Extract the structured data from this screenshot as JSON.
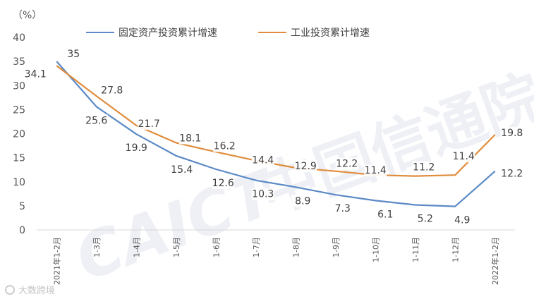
{
  "chart_data": {
    "type": "line",
    "ylabel": "（%）",
    "ylim": [
      0,
      40
    ],
    "yticks": [
      "0",
      "5",
      "10",
      "15",
      "20",
      "25",
      "30",
      "35",
      "40"
    ],
    "categories": [
      "2021年1-2月",
      "1-3月",
      "1-4月",
      "1-5月",
      "1-6月",
      "1-7月",
      "1-8月",
      "1-9月",
      "1-10月",
      "1-11月",
      "1-12月",
      "2022年1-2月"
    ],
    "series": [
      {
        "name": "固定资产投资累计增速",
        "color": "#5b8ac6",
        "values": [
          35,
          25.6,
          19.9,
          15.4,
          12.6,
          10.3,
          8.9,
          7.3,
          6.1,
          5.2,
          4.9,
          12.2
        ],
        "labels": [
          "35",
          "25.6",
          "19.9",
          "15.4",
          "12.6",
          "10.3",
          "8.9",
          "7.3",
          "6.1",
          "5.2",
          "4.9",
          "12.2"
        ]
      },
      {
        "name": "工业投资累计增速",
        "color": "#e08c3c",
        "values": [
          34.1,
          27.8,
          21.7,
          18.1,
          16.2,
          14.4,
          12.9,
          12.2,
          11.4,
          11.2,
          11.4,
          19.8
        ],
        "labels": [
          "34.1",
          "27.8",
          "21.7",
          "18.1",
          "16.2",
          "14.4",
          "12.9",
          "12.2",
          "11.4",
          "11.2",
          "11.4",
          "19.8"
        ]
      }
    ],
    "grid": false,
    "legend_position": "top"
  },
  "watermark": "CAICT中国信通院",
  "credit": "大数跨境"
}
